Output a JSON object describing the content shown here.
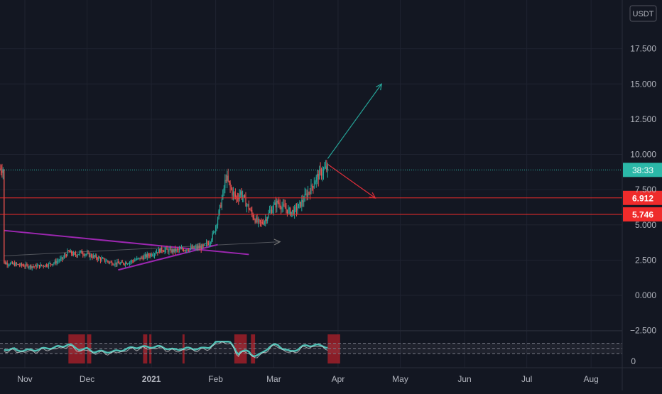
{
  "colors": {
    "background": "#131722",
    "grid": "#1f2330",
    "axis_text": "#b2b5be",
    "candle_up": "#26a69a",
    "candle_down": "#ef5350",
    "resistance_line": "#ef2b2b",
    "current_price_line": "#2bb8a8",
    "trendline": "#9c27b0",
    "arrow_up": "#26a69a",
    "arrow_down": "#e02e3a",
    "oscillator": "#4fbfb4",
    "oscillator_hot": "#b2202a"
  },
  "chart_data": {
    "type": "candlestick",
    "currency_badge": "USDT",
    "y_ticks": [
      -2.5,
      0,
      2.5,
      5,
      7.5,
      10,
      12.5,
      15,
      17.5
    ],
    "y_tick_labels": [
      "−2.500",
      "0.000",
      "2.500",
      "5.000",
      "7.500",
      "10.000",
      "12.500",
      "15.000",
      "17.500"
    ],
    "ylim": [
      -2.8,
      19.5
    ],
    "x_ticks": [
      {
        "label": "Nov",
        "day": 0
      },
      {
        "label": "Dec",
        "day": 30
      },
      {
        "label": "2021",
        "day": 61
      },
      {
        "label": "Feb",
        "day": 92
      },
      {
        "label": "Mar",
        "day": 120
      },
      {
        "label": "Apr",
        "day": 151
      },
      {
        "label": "May",
        "day": 181
      },
      {
        "label": "Jun",
        "day": 212
      },
      {
        "label": "Jul",
        "day": 242
      },
      {
        "label": "Aug",
        "day": 273
      }
    ],
    "price_series": [
      [
        -10,
        2.3
      ],
      [
        -5,
        2.2
      ],
      [
        0,
        2.1
      ],
      [
        5,
        2.05
      ],
      [
        10,
        2.15
      ],
      [
        14,
        2.3
      ],
      [
        18,
        2.6
      ],
      [
        21,
        3.1
      ],
      [
        24,
        2.85
      ],
      [
        27,
        3.05
      ],
      [
        30,
        2.9
      ],
      [
        34,
        2.7
      ],
      [
        38,
        2.5
      ],
      [
        42,
        2.3
      ],
      [
        46,
        2.25
      ],
      [
        50,
        2.35
      ],
      [
        54,
        2.55
      ],
      [
        58,
        2.75
      ],
      [
        62,
        3.0
      ],
      [
        66,
        3.25
      ],
      [
        70,
        3.15
      ],
      [
        74,
        3.2
      ],
      [
        78,
        3.3
      ],
      [
        82,
        3.35
      ],
      [
        86,
        3.45
      ],
      [
        89,
        3.8
      ],
      [
        91,
        4.4
      ],
      [
        93,
        5.5
      ],
      [
        95,
        6.8
      ],
      [
        97,
        8.4
      ],
      [
        98,
        8.0
      ],
      [
        100,
        7.3
      ],
      [
        102,
        6.9
      ],
      [
        104,
        7.3
      ],
      [
        106,
        6.7
      ],
      [
        108,
        6.2
      ],
      [
        110,
        5.6
      ],
      [
        112,
        5.2
      ],
      [
        114,
        5.1
      ],
      [
        116,
        5.4
      ],
      [
        118,
        5.9
      ],
      [
        120,
        6.3
      ],
      [
        122,
        6.6
      ],
      [
        124,
        6.3
      ],
      [
        126,
        6.1
      ],
      [
        128,
        5.9
      ],
      [
        130,
        6.0
      ],
      [
        132,
        6.3
      ],
      [
        134,
        6.7
      ],
      [
        136,
        7.2
      ],
      [
        138,
        7.6
      ],
      [
        140,
        8.2
      ],
      [
        142,
        8.6
      ],
      [
        144,
        8.9
      ],
      [
        146,
        9.0
      ]
    ],
    "resistance_levels": [
      {
        "value": 6.912,
        "label": "6.912"
      },
      {
        "value": 5.746,
        "label": "5.746"
      }
    ],
    "current_price": {
      "value": 8.9,
      "countdown": "38:33"
    },
    "drawings": {
      "trendline_upper": {
        "from": [
          -10,
          4.6
        ],
        "to": [
          108,
          2.9
        ]
      },
      "trendline_lower": {
        "from": [
          45,
          1.8
        ],
        "to": [
          93,
          3.6
        ]
      },
      "arrow_up": {
        "from": [
          146,
          9.7
        ],
        "to": [
          172,
          15.0
        ]
      },
      "arrow_down": {
        "from": [
          146,
          9.3
        ],
        "to": [
          169,
          6.9
        ]
      },
      "arrow_faint": {
        "from": [
          -10,
          2.8
        ],
        "to": [
          123,
          3.8
        ]
      }
    },
    "oscillator": {
      "hot_zones": [
        [
          21,
          29
        ],
        [
          30,
          32
        ],
        [
          57,
          59
        ],
        [
          60,
          61
        ],
        [
          76,
          77
        ],
        [
          101,
          107
        ],
        [
          109,
          111
        ],
        [
          146,
          152
        ]
      ]
    }
  }
}
